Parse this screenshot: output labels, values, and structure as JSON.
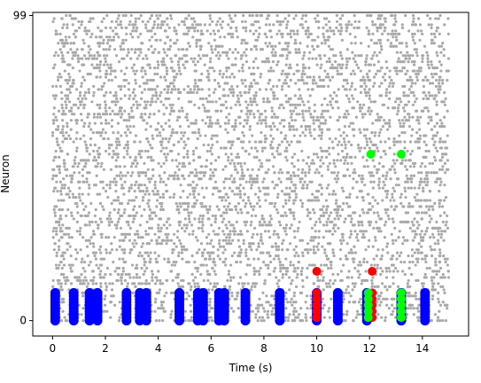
{
  "chart_data": {
    "type": "scatter",
    "title": "",
    "xlabel": "Time (s)",
    "ylabel": "Neuron",
    "xlim": [
      -0.75,
      15.75
    ],
    "ylim": [
      -5,
      100
    ],
    "xticks": [
      0,
      2,
      4,
      6,
      8,
      10,
      12,
      14
    ],
    "xtick_labels": [
      "0",
      "2",
      "4",
      "6",
      "8",
      "10",
      "12",
      "14"
    ],
    "yticks": [
      0,
      99
    ],
    "ytick_labels": [
      "0",
      "99"
    ],
    "grid": false,
    "legend": false,
    "background_spikes": {
      "color": "#a9a9a9",
      "description_neurons": [
        0,
        99
      ],
      "time_range": [
        0,
        15
      ],
      "approx_count": 5200
    },
    "series": [
      {
        "color": "#0000ff",
        "neurons": [
          0,
          1,
          2,
          3,
          4,
          5,
          6,
          7,
          8,
          9
        ],
        "times": [
          0.1,
          0.8,
          1.4,
          1.7,
          2.8,
          3.3,
          3.55,
          4.8,
          5.5,
          5.7,
          6.3,
          6.5,
          7.3,
          8.6,
          10.0,
          10.8,
          11.9,
          13.2,
          14.1
        ]
      },
      {
        "color": "#ff0000",
        "points": [
          [
            10.0,
            16
          ],
          [
            10.0,
            9
          ],
          [
            10.0,
            7
          ],
          [
            10.0,
            5
          ],
          [
            10.0,
            3
          ],
          [
            10.0,
            1
          ],
          [
            12.1,
            16
          ],
          [
            12.1,
            9
          ],
          [
            12.1,
            7
          ],
          [
            12.1,
            5
          ],
          [
            12.1,
            3
          ],
          [
            12.1,
            1
          ]
        ]
      },
      {
        "color": "#00ff00",
        "points": [
          [
            12.05,
            54
          ],
          [
            13.2,
            54
          ],
          [
            11.95,
            9
          ],
          [
            11.95,
            7
          ],
          [
            11.95,
            5
          ],
          [
            11.95,
            3
          ],
          [
            11.95,
            1
          ],
          [
            13.2,
            9
          ],
          [
            13.2,
            7
          ],
          [
            13.2,
            5
          ],
          [
            13.2,
            3
          ],
          [
            13.2,
            1
          ]
        ]
      }
    ]
  }
}
